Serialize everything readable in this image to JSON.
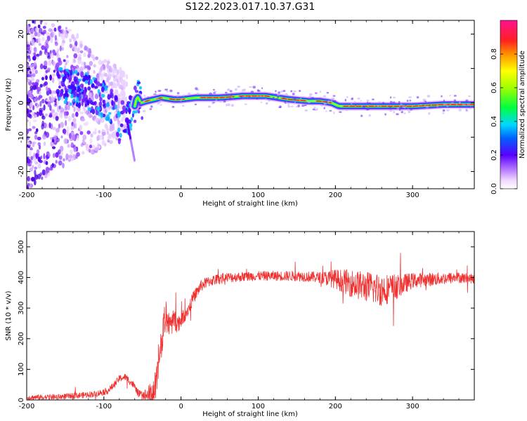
{
  "title": "S122.2023.017.10.37.G31",
  "chart_data": [
    {
      "type": "heatmap",
      "xlabel": "Height of straight line (km)",
      "ylabel": "Frequency (Hz)",
      "xlim": [
        -200,
        380
      ],
      "ylim": [
        -25,
        24
      ],
      "xticks": [
        -200,
        -100,
        0,
        100,
        200,
        300
      ],
      "yticks": [
        -20,
        -10,
        0,
        10,
        20
      ],
      "colorbar": {
        "label": "Normalized spectral amplitude",
        "range": [
          0,
          1
        ],
        "ticks": [
          "0.0",
          "0.2",
          "0.4",
          "0.6",
          "0.8"
        ]
      },
      "ridge": {
        "x": [
          -200,
          -150,
          -120,
          -100,
          -90,
          -85,
          -80,
          -75,
          -70,
          -65,
          -60,
          -57,
          -52,
          -45,
          -35,
          -25,
          -10,
          0,
          20,
          50,
          80,
          110,
          140,
          165,
          180,
          195,
          205,
          220,
          260,
          300,
          340,
          380
        ],
        "y": [
          6,
          5,
          3,
          1,
          -1,
          -3,
          -7,
          -4,
          -6,
          -3,
          -1,
          2,
          0,
          0.5,
          1,
          1.5,
          1,
          1,
          1.5,
          1.5,
          2,
          2,
          1,
          0.5,
          0.5,
          0,
          -1,
          -1,
          -1,
          -1,
          -0.5,
          -0.5
        ]
      }
    },
    {
      "type": "line",
      "xlabel": "Height of straight line (km)",
      "ylabel": "SNR (10 * v/v)",
      "xlim": [
        -200,
        380
      ],
      "ylim": [
        0,
        550
      ],
      "xticks": [
        -200,
        -100,
        0,
        100,
        200,
        300
      ],
      "yticks": [
        0,
        100,
        200,
        300,
        400,
        500
      ],
      "color": "#f0302f",
      "envelope": {
        "x": [
          -200,
          -160,
          -130,
          -110,
          -95,
          -88,
          -80,
          -72,
          -62,
          -55,
          -45,
          -38,
          -32,
          -28,
          -24,
          -20,
          -15,
          -10,
          -5,
          0,
          5,
          10,
          15,
          20,
          25,
          30,
          40,
          60,
          100,
          150,
          180,
          200,
          230,
          260,
          280,
          300,
          330,
          360,
          380
        ],
        "y": [
          8,
          10,
          15,
          20,
          30,
          45,
          70,
          75,
          50,
          20,
          15,
          20,
          50,
          120,
          220,
          280,
          240,
          260,
          250,
          260,
          280,
          300,
          330,
          350,
          370,
          380,
          390,
          400,
          405,
          405,
          400,
          395,
          375,
          360,
          370,
          390,
          395,
          400,
          395
        ]
      },
      "noise": {
        "x": [
          -200,
          -50,
          -30,
          0,
          30,
          100,
          180,
          220,
          260,
          300,
          380
        ],
        "amplitude": [
          8,
          12,
          60,
          25,
          18,
          15,
          18,
          45,
          55,
          25,
          15
        ]
      }
    }
  ]
}
